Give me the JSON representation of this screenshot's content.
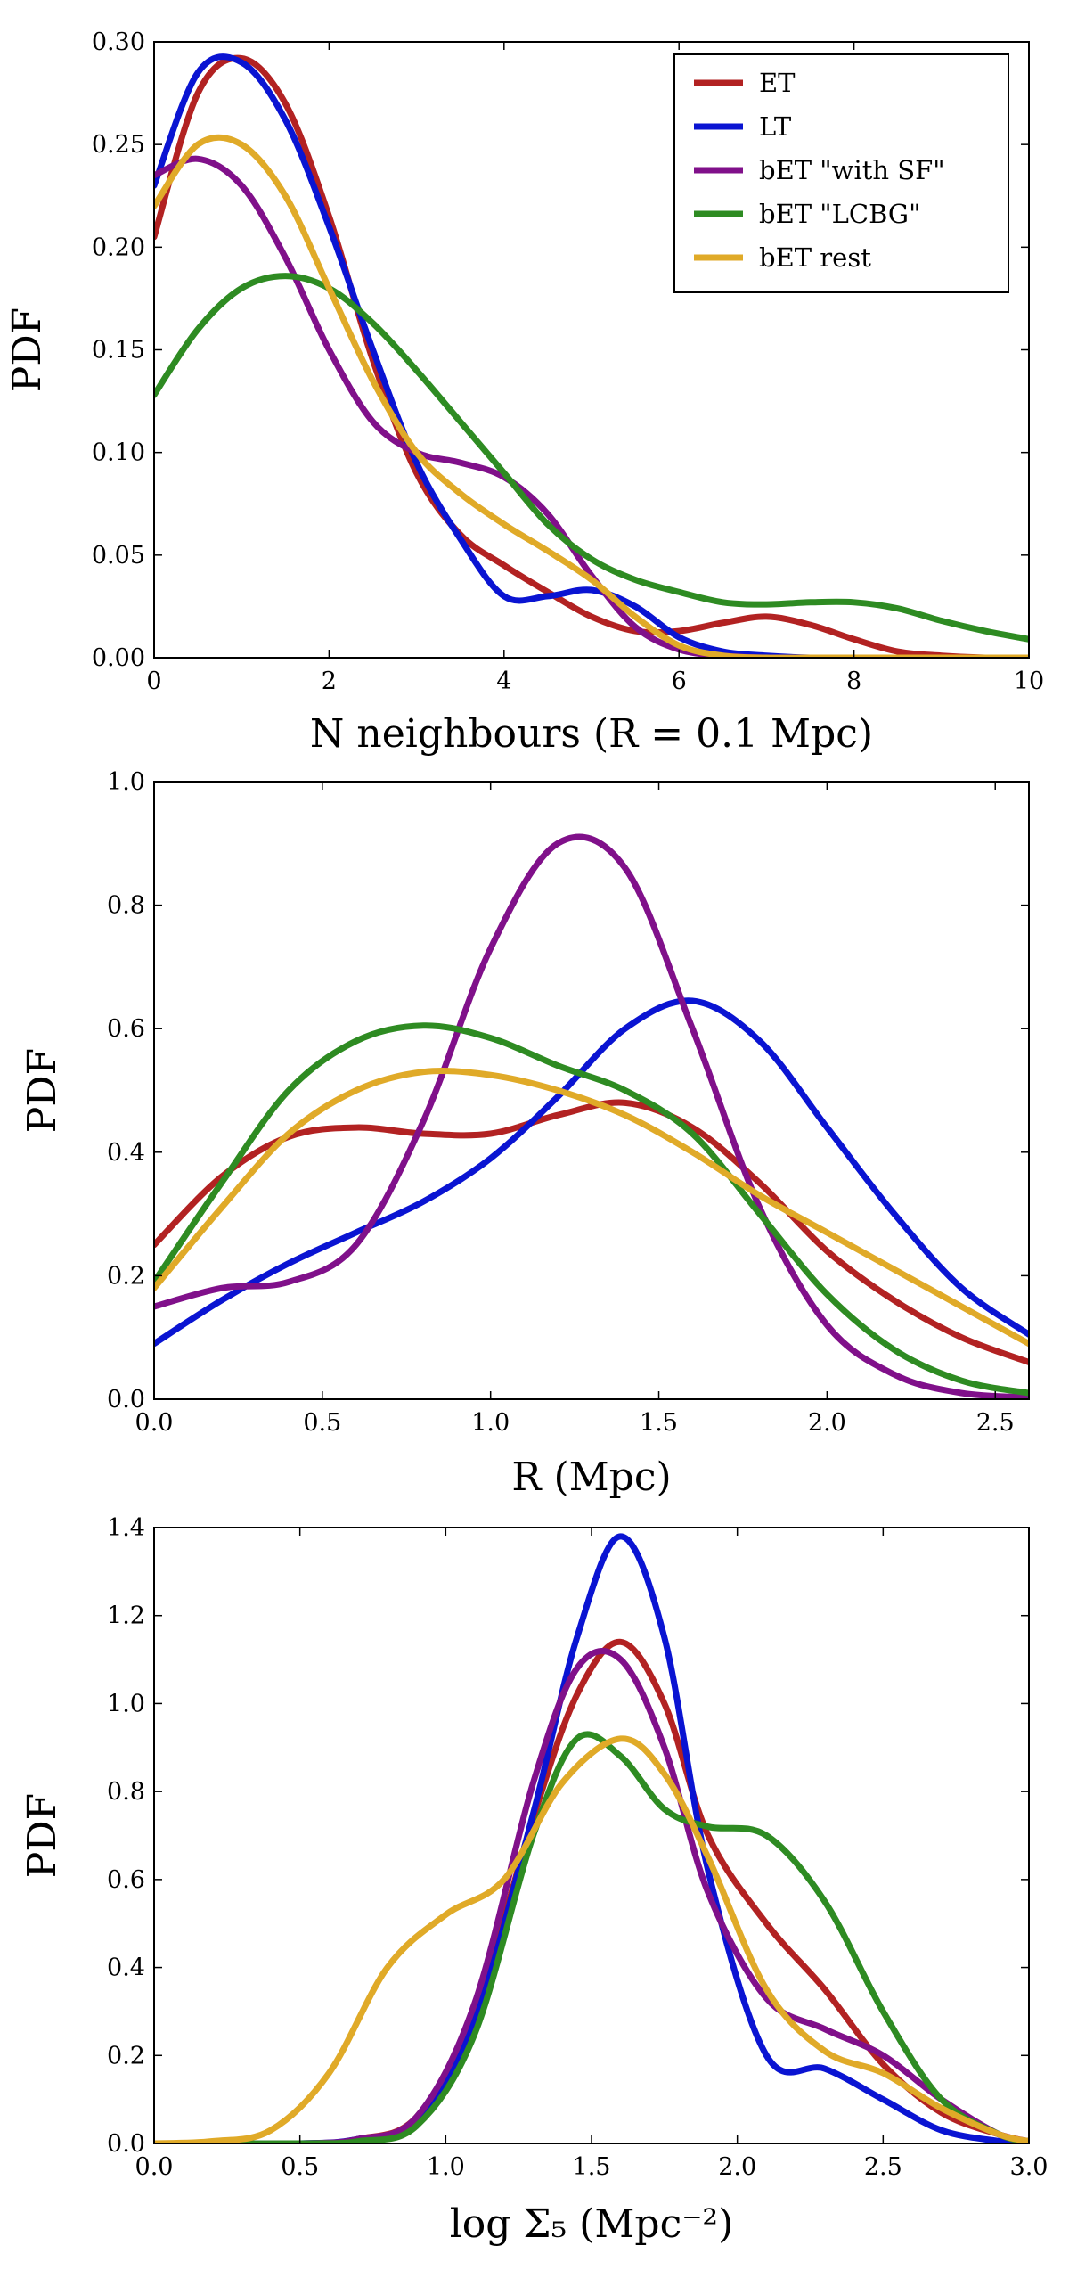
{
  "chart_data": [
    {
      "type": "line",
      "title": "",
      "xlabel": "N neighbours (R = 0.1 Mpc)",
      "ylabel": "PDF",
      "xlim": [
        0,
        10
      ],
      "ylim": [
        0,
        0.3
      ],
      "xticks": [
        0,
        2,
        4,
        6,
        8,
        10
      ],
      "xtick_labels": [
        "0",
        "2",
        "4",
        "6",
        "8",
        "10"
      ],
      "yticks": [
        0,
        0.05,
        0.1,
        0.15,
        0.2,
        0.25,
        0.3
      ],
      "ytick_labels": [
        "0.00",
        "0.05",
        "0.10",
        "0.15",
        "0.20",
        "0.25",
        "0.30"
      ],
      "legend": "top-right",
      "grid": false,
      "series": [
        {
          "name": "ET",
          "color": "#b22222",
          "x": [
            0,
            0.5,
            1,
            1.5,
            2,
            2.5,
            3,
            3.5,
            4,
            4.5,
            5,
            5.5,
            6,
            6.5,
            7,
            7.5,
            8,
            8.5,
            9,
            9.5,
            10
          ],
          "y": [
            0.205,
            0.275,
            0.292,
            0.27,
            0.215,
            0.145,
            0.09,
            0.06,
            0.045,
            0.032,
            0.02,
            0.013,
            0.013,
            0.017,
            0.02,
            0.016,
            0.009,
            0.003,
            0.001,
            0,
            0
          ]
        },
        {
          "name": "LT",
          "color": "#0a14d2",
          "x": [
            0,
            0.5,
            1,
            1.5,
            2,
            2.5,
            3,
            3.5,
            4,
            4.5,
            5,
            5.5,
            6,
            6.5,
            7,
            7.5,
            8,
            8.5,
            9,
            9.5,
            10
          ],
          "y": [
            0.23,
            0.285,
            0.29,
            0.262,
            0.21,
            0.15,
            0.095,
            0.058,
            0.03,
            0.03,
            0.033,
            0.025,
            0.01,
            0.003,
            0.001,
            0,
            0,
            0,
            0,
            0,
            0
          ]
        },
        {
          "name": "bET \"with SF\"",
          "color": "#80108a",
          "x": [
            0,
            0.5,
            1,
            1.5,
            2,
            2.5,
            3,
            3.5,
            4,
            4.5,
            5,
            5.5,
            6,
            6.5,
            7,
            7.5,
            8,
            8.5,
            9,
            9.5,
            10
          ],
          "y": [
            0.235,
            0.243,
            0.23,
            0.195,
            0.15,
            0.115,
            0.1,
            0.095,
            0.088,
            0.07,
            0.04,
            0.015,
            0.004,
            0.001,
            0,
            0,
            0,
            0,
            0,
            0,
            0
          ]
        },
        {
          "name": "bET \"LCBG\"",
          "color": "#2e8b22",
          "x": [
            0,
            0.5,
            1,
            1.5,
            2,
            2.5,
            3,
            3.5,
            4,
            4.5,
            5,
            5.5,
            6,
            6.5,
            7,
            7.5,
            8,
            8.5,
            9,
            9.5,
            10
          ],
          "y": [
            0.128,
            0.16,
            0.18,
            0.186,
            0.18,
            0.163,
            0.14,
            0.115,
            0.09,
            0.065,
            0.048,
            0.038,
            0.032,
            0.027,
            0.026,
            0.027,
            0.027,
            0.024,
            0.018,
            0.013,
            0.009
          ]
        },
        {
          "name": "bET rest",
          "color": "#e0aa28",
          "x": [
            0,
            0.5,
            1,
            1.5,
            2,
            2.5,
            3,
            3.5,
            4,
            4.5,
            5,
            5.5,
            6,
            6.5,
            7,
            7.5,
            8,
            8.5,
            9,
            9.5,
            10
          ],
          "y": [
            0.22,
            0.25,
            0.25,
            0.225,
            0.18,
            0.135,
            0.1,
            0.08,
            0.065,
            0.052,
            0.038,
            0.02,
            0.006,
            0.001,
            0,
            0,
            0,
            0,
            0,
            0,
            0
          ]
        }
      ]
    },
    {
      "type": "line",
      "title": "",
      "xlabel": "R (Mpc)",
      "ylabel": "PDF",
      "xlim": [
        0,
        2.6
      ],
      "ylim": [
        0,
        1.0
      ],
      "xticks": [
        0,
        0.5,
        1.0,
        1.5,
        2.0,
        2.5
      ],
      "xtick_labels": [
        "0.0",
        "0.5",
        "1.0",
        "1.5",
        "2.0",
        "2.5"
      ],
      "yticks": [
        0,
        0.2,
        0.4,
        0.6,
        0.8,
        1.0
      ],
      "ytick_labels": [
        "0.0",
        "0.2",
        "0.4",
        "0.6",
        "0.8",
        "1.0"
      ],
      "grid": false,
      "series": [
        {
          "name": "ET",
          "color": "#b22222",
          "x": [
            0,
            0.2,
            0.4,
            0.6,
            0.8,
            1.0,
            1.2,
            1.4,
            1.6,
            1.8,
            2.0,
            2.2,
            2.4,
            2.6
          ],
          "y": [
            0.25,
            0.36,
            0.425,
            0.44,
            0.43,
            0.43,
            0.46,
            0.48,
            0.44,
            0.35,
            0.24,
            0.16,
            0.1,
            0.06
          ]
        },
        {
          "name": "LT",
          "color": "#0a14d2",
          "x": [
            0,
            0.2,
            0.4,
            0.6,
            0.8,
            1.0,
            1.2,
            1.4,
            1.6,
            1.8,
            2.0,
            2.2,
            2.4,
            2.6
          ],
          "y": [
            0.09,
            0.16,
            0.22,
            0.27,
            0.32,
            0.39,
            0.49,
            0.6,
            0.645,
            0.58,
            0.44,
            0.3,
            0.18,
            0.105
          ]
        },
        {
          "name": "bET \"with SF\"",
          "color": "#80108a",
          "x": [
            0,
            0.2,
            0.4,
            0.6,
            0.8,
            1.0,
            1.2,
            1.4,
            1.6,
            1.8,
            2.0,
            2.2,
            2.4,
            2.6
          ],
          "y": [
            0.15,
            0.18,
            0.19,
            0.25,
            0.45,
            0.73,
            0.9,
            0.86,
            0.6,
            0.31,
            0.12,
            0.04,
            0.01,
            0.003
          ]
        },
        {
          "name": "bET \"LCBG\"",
          "color": "#2e8b22",
          "x": [
            0,
            0.2,
            0.4,
            0.6,
            0.8,
            1.0,
            1.2,
            1.4,
            1.6,
            1.8,
            2.0,
            2.2,
            2.4,
            2.6
          ],
          "y": [
            0.19,
            0.35,
            0.5,
            0.58,
            0.605,
            0.585,
            0.54,
            0.5,
            0.43,
            0.3,
            0.17,
            0.08,
            0.03,
            0.01
          ]
        },
        {
          "name": "bET rest",
          "color": "#e0aa28",
          "x": [
            0,
            0.2,
            0.4,
            0.6,
            0.8,
            1.0,
            1.2,
            1.4,
            1.6,
            1.8,
            2.0,
            2.2,
            2.4,
            2.6
          ],
          "y": [
            0.18,
            0.31,
            0.43,
            0.5,
            0.53,
            0.525,
            0.5,
            0.46,
            0.4,
            0.33,
            0.27,
            0.21,
            0.15,
            0.09
          ]
        }
      ]
    },
    {
      "type": "line",
      "title": "",
      "xlabel": "log Σ₅ (Mpc⁻²)",
      "ylabel": "PDF",
      "xlim": [
        0,
        3.0
      ],
      "ylim": [
        0,
        1.4
      ],
      "xticks": [
        0,
        0.5,
        1.0,
        1.5,
        2.0,
        2.5,
        3.0
      ],
      "xtick_labels": [
        "0.0",
        "0.5",
        "1.0",
        "1.5",
        "2.0",
        "2.5",
        "3.0"
      ],
      "yticks": [
        0,
        0.2,
        0.4,
        0.6,
        0.8,
        1.0,
        1.2,
        1.4
      ],
      "ytick_labels": [
        "0.0",
        "0.2",
        "0.4",
        "0.6",
        "0.8",
        "1.0",
        "1.2",
        "1.4"
      ],
      "grid": false,
      "series": [
        {
          "name": "ET",
          "color": "#b22222",
          "x": [
            0,
            0.5,
            0.7,
            0.9,
            1.1,
            1.3,
            1.45,
            1.6,
            1.75,
            1.9,
            2.1,
            2.3,
            2.5,
            2.7,
            2.9,
            3.0
          ],
          "y": [
            0,
            0,
            0.01,
            0.06,
            0.3,
            0.74,
            1.02,
            1.14,
            1.0,
            0.7,
            0.5,
            0.35,
            0.18,
            0.07,
            0.02,
            0.005
          ]
        },
        {
          "name": "LT",
          "color": "#0a14d2",
          "x": [
            0,
            0.5,
            0.7,
            0.9,
            1.1,
            1.3,
            1.45,
            1.6,
            1.75,
            1.9,
            2.1,
            2.3,
            2.5,
            2.7,
            2.9,
            3.0
          ],
          "y": [
            0,
            0,
            0.01,
            0.05,
            0.28,
            0.75,
            1.15,
            1.38,
            1.15,
            0.62,
            0.2,
            0.17,
            0.1,
            0.03,
            0.005,
            0
          ]
        },
        {
          "name": "bET \"with SF\"",
          "color": "#80108a",
          "x": [
            0,
            0.5,
            0.7,
            0.9,
            1.1,
            1.3,
            1.45,
            1.6,
            1.75,
            1.9,
            2.1,
            2.3,
            2.5,
            2.7,
            2.9,
            3.0
          ],
          "y": [
            0,
            0,
            0.01,
            0.06,
            0.32,
            0.82,
            1.08,
            1.1,
            0.9,
            0.57,
            0.33,
            0.26,
            0.2,
            0.1,
            0.02,
            0.005
          ]
        },
        {
          "name": "bET \"LCBG\"",
          "color": "#2e8b22",
          "x": [
            0,
            0.5,
            0.7,
            0.9,
            1.1,
            1.3,
            1.45,
            1.6,
            1.75,
            1.9,
            2.1,
            2.3,
            2.5,
            2.7,
            2.9,
            3.0
          ],
          "y": [
            0,
            0,
            0.005,
            0.04,
            0.25,
            0.7,
            0.92,
            0.88,
            0.76,
            0.72,
            0.7,
            0.55,
            0.3,
            0.1,
            0.02,
            0.005
          ]
        },
        {
          "name": "bET rest",
          "color": "#e0aa28",
          "x": [
            0,
            0.2,
            0.4,
            0.6,
            0.8,
            1.0,
            1.2,
            1.4,
            1.6,
            1.75,
            1.9,
            2.1,
            2.3,
            2.5,
            2.7,
            2.9,
            3.0
          ],
          "y": [
            0,
            0.005,
            0.03,
            0.16,
            0.4,
            0.52,
            0.6,
            0.82,
            0.92,
            0.84,
            0.65,
            0.35,
            0.21,
            0.16,
            0.08,
            0.02,
            0.005
          ]
        }
      ]
    }
  ]
}
